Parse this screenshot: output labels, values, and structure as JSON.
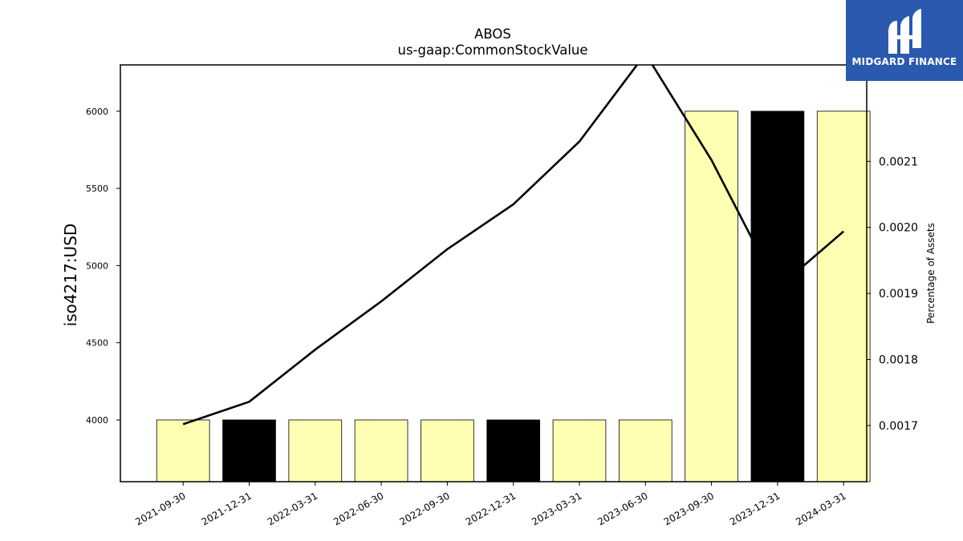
{
  "chart_data": {
    "type": "bar",
    "title": "ABOS",
    "subtitle": "us-gaap:CommonStockValue",
    "ylabel": "iso4217:USD",
    "y2label": "Percentage of Assets",
    "categories": [
      "2021-09-30",
      "2021-12-31",
      "2022-03-31",
      "2022-06-30",
      "2022-09-30",
      "2022-12-31",
      "2023-03-31",
      "2023-06-30",
      "2023-09-30",
      "2023-12-31",
      "2024-03-31"
    ],
    "series": [
      {
        "axis": "left",
        "values": [
          4000,
          4000,
          4000,
          4000,
          4000,
          4000,
          4000,
          4000,
          6000,
          6000,
          6000
        ],
        "bar_colors": [
          "#ffffb3",
          "#000000",
          "#ffffb3",
          "#ffffb3",
          "#ffffb3",
          "#000000",
          "#ffffb3",
          "#ffffb3",
          "#ffffb3",
          "#000000",
          "#ffffb3"
        ]
      },
      {
        "axis": "right",
        "type": "line",
        "color": "#000000",
        "values": [
          0.001702,
          0.001736,
          0.001815,
          0.001888,
          0.001967,
          0.002035,
          0.00213,
          0.002263,
          0.002102,
          0.001908,
          0.001994
        ]
      }
    ],
    "ylim": [
      3600,
      6300
    ],
    "y2lim": [
      0.001615,
      0.002246
    ],
    "yticks": [
      4000,
      4500,
      5000,
      5500,
      6000
    ],
    "y2ticks": [
      "0.0017",
      "0.0018",
      "0.0019",
      "0.0020",
      "0.0021"
    ],
    "grid": false
  },
  "logo": {
    "text": "MIDGARD FINANCE",
    "background": "#2b59b0"
  }
}
